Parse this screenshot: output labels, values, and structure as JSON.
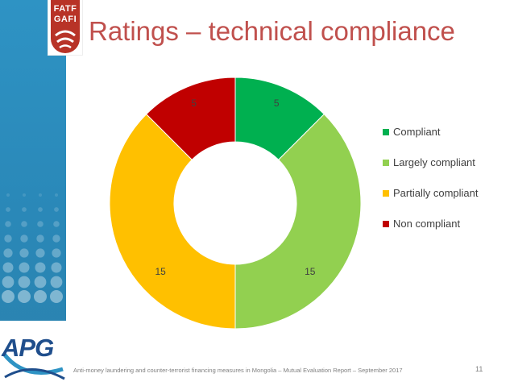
{
  "slide": {
    "title": "Ratings – technical compliance",
    "footer": "Anti-money laundering and counter-terrorist financing measures in Mongolia – Mutual Evaluation Report – September 2017",
    "page_number": "11"
  },
  "logos": {
    "fatf_line1": "FATF",
    "fatf_line2": "GAFI",
    "apg": "APG"
  },
  "chart_data": {
    "type": "pie",
    "subtype": "donut",
    "categories": [
      "Compliant",
      "Largely compliant",
      "Partially compliant",
      "Non compliant"
    ],
    "values": [
      5,
      15,
      15,
      5
    ],
    "colors": [
      "#00b050",
      "#92d050",
      "#ffc000",
      "#c00000"
    ],
    "data_labels": [
      "5",
      "15",
      "15",
      "5"
    ],
    "legend_position": "right"
  }
}
